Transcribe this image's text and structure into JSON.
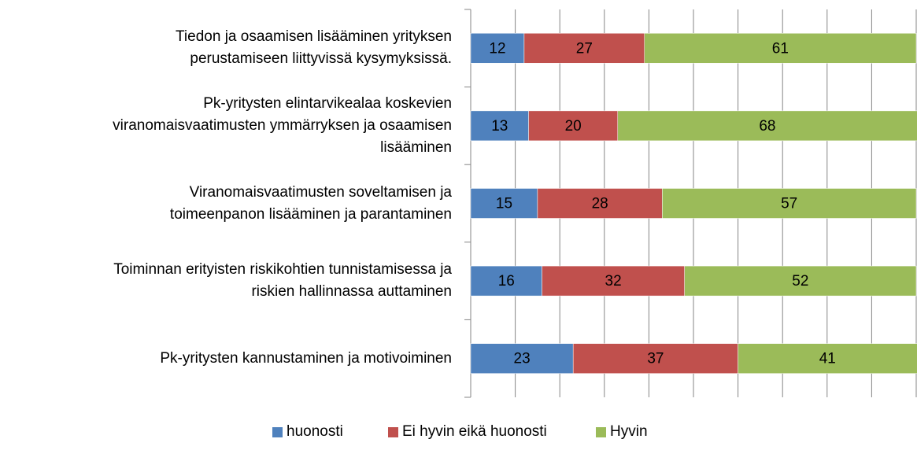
{
  "chart_data": {
    "type": "stacked-barh",
    "categories": [
      "Tiedon ja osaamisen lisääminen yrityksen\nperustamiseen liittyvissä kysymyksissä.",
      "Pk-yritysten elintarvikealaa koskevien\nviranomaisvaatimusten ymmärryksen ja osaamisen\nlisääminen",
      "Viranomaisvaatimusten soveltamisen ja\ntoimeenpanon lisääminen ja parantaminen",
      "Toiminnan erityisten riskikohtien tunnistamisessa ja\nriskien hallinnassa auttaminen",
      "Pk-yritysten kannustaminen ja motivoiminen"
    ],
    "series": [
      {
        "name": "huonosti",
        "color": "#4f81bd",
        "values": [
          12,
          13,
          15,
          16,
          23
        ]
      },
      {
        "name": "Ei hyvin eikä huonosti",
        "color": "#c0504d",
        "values": [
          27,
          20,
          28,
          32,
          37
        ]
      },
      {
        "name": "Hyvin",
        "color": "#9bbb59",
        "values": [
          61,
          68,
          57,
          52,
          41
        ]
      }
    ],
    "xlim": [
      0,
      100
    ],
    "xticks": [
      0,
      10,
      20,
      30,
      40,
      50,
      60,
      70,
      80,
      90,
      100
    ],
    "grid": true
  }
}
